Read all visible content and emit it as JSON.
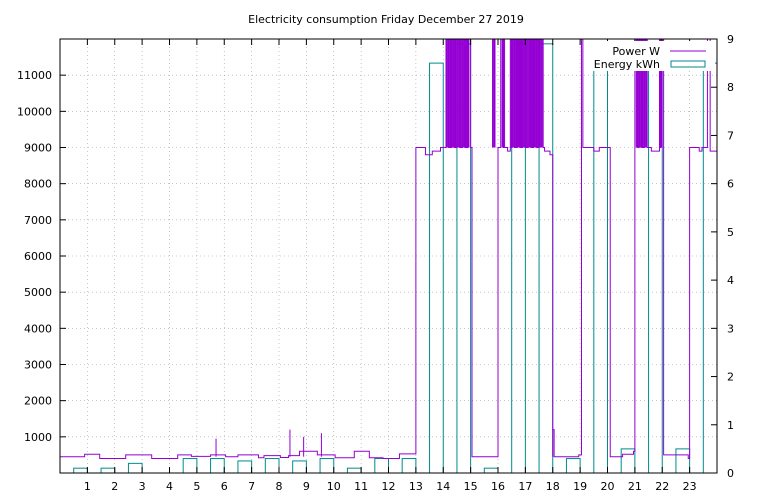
{
  "chart_data": {
    "type": "line",
    "title": "Electricity consumption Friday December 27 2019",
    "grid": true,
    "legend_position": "top-right",
    "colors": {
      "power": "#9400d3",
      "energy": "#008b8b"
    },
    "x_ticks": [
      1,
      2,
      3,
      4,
      5,
      6,
      7,
      8,
      9,
      10,
      11,
      12,
      13,
      14,
      15,
      16,
      17,
      18,
      19,
      20,
      21,
      22,
      23
    ],
    "y_ticks": [
      1000,
      2000,
      3000,
      4000,
      5000,
      6000,
      7000,
      8000,
      9000,
      10000,
      11000
    ],
    "y2_ticks": [
      0,
      1,
      2,
      3,
      4,
      5,
      6,
      7,
      8,
      9
    ],
    "xlim": [
      0,
      24
    ],
    "ylim": [
      0,
      12000
    ],
    "y2lim": [
      0,
      9
    ],
    "series": [
      {
        "name": "Power W",
        "axis": "y",
        "style": "step",
        "points": [
          [
            0.0,
            450
          ],
          [
            0.9,
            520
          ],
          [
            1.45,
            400
          ],
          [
            2.4,
            500
          ],
          [
            3.35,
            400
          ],
          [
            4.3,
            500
          ],
          [
            4.8,
            460
          ],
          [
            5.5,
            500
          ],
          [
            6.05,
            450
          ],
          [
            6.5,
            500
          ],
          [
            7.25,
            420
          ],
          [
            7.45,
            480
          ],
          [
            8.05,
            430
          ],
          [
            8.35,
            480
          ],
          [
            8.75,
            600
          ],
          [
            9.4,
            500
          ],
          [
            10.05,
            420
          ],
          [
            10.75,
            600
          ],
          [
            11.3,
            420
          ],
          [
            11.8,
            400
          ],
          [
            12.4,
            530
          ],
          [
            12.95,
            530
          ],
          [
            13.0,
            9000
          ],
          [
            13.35,
            8800
          ],
          [
            13.6,
            8900
          ],
          [
            13.9,
            9000
          ],
          [
            14.05,
            9000
          ],
          [
            14.1,
            12000
          ],
          [
            14.2,
            9000
          ],
          [
            14.3,
            12000
          ],
          [
            14.4,
            9000
          ],
          [
            14.5,
            12000
          ],
          [
            14.6,
            9000
          ],
          [
            14.7,
            12000
          ],
          [
            14.8,
            9000
          ],
          [
            14.9,
            12000
          ],
          [
            15.0,
            9000
          ],
          [
            15.05,
            450
          ],
          [
            15.85,
            450
          ],
          [
            16.0,
            9000
          ],
          [
            16.1,
            12000
          ],
          [
            16.2,
            9000
          ],
          [
            16.35,
            8900
          ],
          [
            16.45,
            9000
          ],
          [
            16.5,
            12000
          ],
          [
            16.6,
            9000
          ],
          [
            16.7,
            12000
          ],
          [
            16.8,
            9000
          ],
          [
            16.9,
            12000
          ],
          [
            17.0,
            9000
          ],
          [
            17.1,
            12000
          ],
          [
            17.2,
            9000
          ],
          [
            17.3,
            12000
          ],
          [
            17.4,
            9000
          ],
          [
            17.5,
            12000
          ],
          [
            17.65,
            9000
          ],
          [
            17.7,
            8900
          ],
          [
            17.9,
            8800
          ],
          [
            18.0,
            1200
          ],
          [
            18.05,
            450
          ],
          [
            18.95,
            500
          ],
          [
            19.05,
            12000
          ],
          [
            19.1,
            9000
          ],
          [
            19.5,
            8900
          ],
          [
            19.7,
            9000
          ],
          [
            20.1,
            450
          ],
          [
            20.55,
            520
          ],
          [
            20.95,
            600
          ],
          [
            21.0,
            12000
          ],
          [
            21.1,
            9000
          ],
          [
            21.15,
            12000
          ],
          [
            21.25,
            9000
          ],
          [
            21.35,
            12000
          ],
          [
            21.45,
            9000
          ],
          [
            21.6,
            8900
          ],
          [
            21.9,
            9000
          ],
          [
            21.95,
            12000
          ],
          [
            22.05,
            500
          ],
          [
            22.95,
            400
          ],
          [
            23.0,
            9000
          ],
          [
            23.35,
            8900
          ],
          [
            23.45,
            9000
          ],
          [
            23.65,
            12000
          ],
          [
            23.75,
            8900
          ],
          [
            24.0,
            8900
          ]
        ],
        "spikes": [
          [
            5.7,
            950
          ],
          [
            8.4,
            1200
          ],
          [
            8.9,
            1000
          ],
          [
            9.55,
            1100
          ],
          [
            18.0,
            1200
          ]
        ]
      },
      {
        "name": "Energy kWh",
        "axis": "y2",
        "style": "boxes",
        "values": [
          0.1,
          0.1,
          0.2,
          0.0,
          0.3,
          0.3,
          0.25,
          0.3,
          0.25,
          0.3,
          0.1,
          0.3,
          0.3,
          8.5,
          8.9,
          0.1,
          8.9,
          8.9,
          0.3,
          8.4,
          0.5,
          8.9,
          0.5,
          8.5
        ]
      }
    ]
  }
}
